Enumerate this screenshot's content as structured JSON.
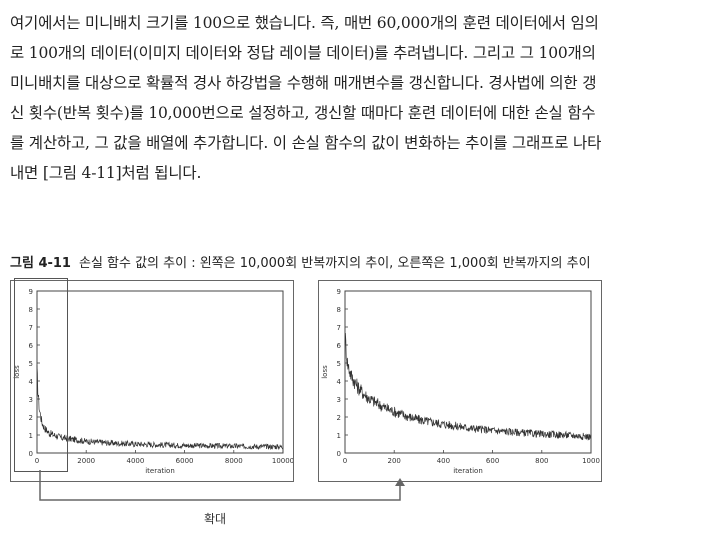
{
  "paragraph": {
    "lines": [
      "여기에서는 미니배치 크기를 100으로 했습니다. 즉, 매번 60,000개의 훈련 데이터에서 임의",
      "로 100개의 데이터(이미지 데이터와 정답 레이블 데이터)를 추려냅니다. 그리고 그 100개의",
      "미니배치를 대상으로 확률적 경사 하강법을 수행해 매개변수를 갱신합니다. 경사법에 의한 갱",
      "신 횟수(반복 횟수)를 10,000번으로 설정하고, 갱신할 때마다 훈련 데이터에 대한 손실 함수",
      "를 계산하고, 그 값을 배열에 추가합니다. 이 손실 함수의 값이 변화하는 추이를 그래프로 나타",
      "내면 [그림 4-11]처럼 됩니다."
    ]
  },
  "caption": {
    "number": "그림 4-11",
    "text": "손실 함수 값의 추이 : 왼쪽은 10,000회 반복까지의 추이, 오른쪽은 1,000회 반복까지의 추이"
  },
  "zoom_label": "확대",
  "chart_data": [
    {
      "type": "line",
      "title": "",
      "xlabel": "iteration",
      "ylabel": "loss",
      "xlim": [
        0,
        10000
      ],
      "ylim": [
        0,
        9
      ],
      "xticks": [
        "0",
        "2000",
        "4000",
        "6000",
        "8000",
        "10000"
      ],
      "yticks": [
        "0",
        "1",
        "2",
        "3",
        "4",
        "5",
        "6",
        "7",
        "8",
        "9"
      ],
      "grid": false,
      "series": [
        {
          "x": [
            0,
            50,
            100,
            200,
            300,
            500,
            800,
            1000,
            1500,
            2000,
            3000,
            4000,
            5000,
            6000,
            7000,
            8000,
            9000,
            10000
          ],
          "values": [
            4.5,
            3.2,
            2.4,
            1.7,
            1.4,
            1.1,
            0.95,
            0.85,
            0.75,
            0.65,
            0.55,
            0.5,
            0.45,
            0.42,
            0.4,
            0.38,
            0.36,
            0.35
          ]
        }
      ],
      "line_color": "#333333"
    },
    {
      "type": "line",
      "title": "",
      "xlabel": "iteration",
      "ylabel": "loss",
      "xlim": [
        0,
        1000
      ],
      "ylim": [
        0,
        9
      ],
      "xticks": [
        "0",
        "200",
        "400",
        "600",
        "800",
        "1000"
      ],
      "yticks": [
        "0",
        "1",
        "2",
        "3",
        "4",
        "5",
        "6",
        "7",
        "8",
        "9"
      ],
      "grid": false,
      "series": [
        {
          "x": [
            0,
            10,
            25,
            50,
            75,
            100,
            150,
            200,
            250,
            300,
            400,
            500,
            600,
            700,
            800,
            900,
            1000
          ],
          "values": [
            6.5,
            5.0,
            4.3,
            3.7,
            3.3,
            3.0,
            2.6,
            2.3,
            2.05,
            1.85,
            1.6,
            1.4,
            1.25,
            1.15,
            1.05,
            1.0,
            0.9
          ]
        }
      ],
      "line_color": "#333333"
    }
  ]
}
